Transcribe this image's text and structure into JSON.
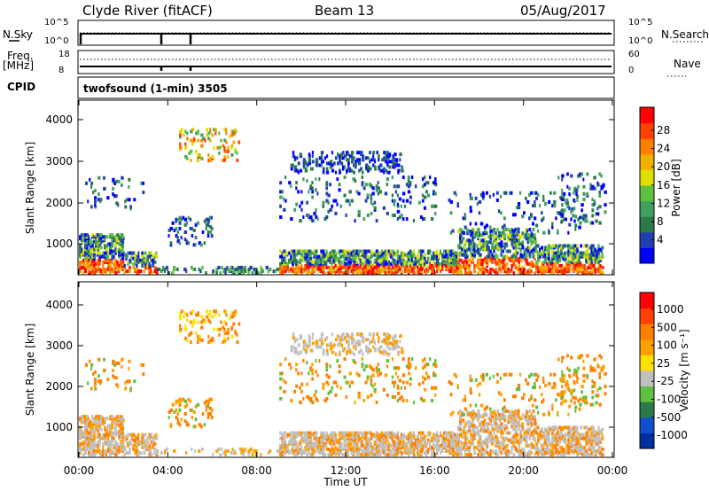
{
  "header": {
    "station": "Clyde River (fitACF)",
    "beam": "Beam 13",
    "date": "05/Aug/2017"
  },
  "panels": {
    "nsky_label": "N.Sky",
    "nsearch_label": "N.Search",
    "noise_ticks": [
      "10^5",
      "10^0"
    ],
    "freq_label": "Freq.",
    "freq_unit": "[MHz]",
    "freq_ticks": [
      "18",
      "8"
    ],
    "nave_label": "Nave",
    "nave_ticks": [
      "60",
      "0"
    ],
    "cpid_label": "CPID",
    "cpid_value": "twofsound (1-min) 3505"
  },
  "axes": {
    "ylabel": "Slant Range [km]",
    "yticks": [
      "4000",
      "3000",
      "2000",
      "1000"
    ],
    "xlabel": "Time UT",
    "xticks": [
      "00:00",
      "04:00",
      "08:00",
      "12:00",
      "16:00",
      "20:00",
      "00:00"
    ]
  },
  "colorbars": {
    "power": {
      "label": "Power [dB]",
      "ticks": [
        "28",
        "24",
        "20",
        "16",
        "12",
        "8",
        "4"
      ],
      "colors": [
        "#0000ff",
        "#2040b0",
        "#2a7a4a",
        "#40a060",
        "#60c040",
        "#e0e000",
        "#f0b000",
        "#ff8000",
        "#ff4000",
        "#ff0000"
      ]
    },
    "velocity": {
      "label": "Velocity [m s⁻¹]",
      "ticks": [
        "1000",
        "500",
        "100",
        "25",
        "-25",
        "-100",
        "-500",
        "-1000"
      ],
      "colors": [
        "#0030a0",
        "#1050d0",
        "#2a7a4a",
        "#60c040",
        "#c0c0c0",
        "#ffe000",
        "#ffa000",
        "#ff8000",
        "#ff4000",
        "#ff0000"
      ]
    }
  },
  "chart_data": [
    {
      "type": "heatmap",
      "title": "Power",
      "xlabel": "Time UT",
      "ylabel": "Slant Range [km]",
      "xlim": [
        "00:00",
        "24:00"
      ],
      "ylim": [
        180,
        4500
      ],
      "colorbar_label": "Power [dB]",
      "colorbar_range": [
        0,
        30
      ]
    },
    {
      "type": "heatmap",
      "title": "Velocity",
      "xlabel": "Time UT",
      "ylabel": "Slant Range [km]",
      "xlim": [
        "00:00",
        "24:00"
      ],
      "ylim": [
        180,
        4500
      ],
      "colorbar_label": "Velocity [m s⁻¹]",
      "colorbar_range": [
        -1000,
        1000
      ]
    }
  ]
}
